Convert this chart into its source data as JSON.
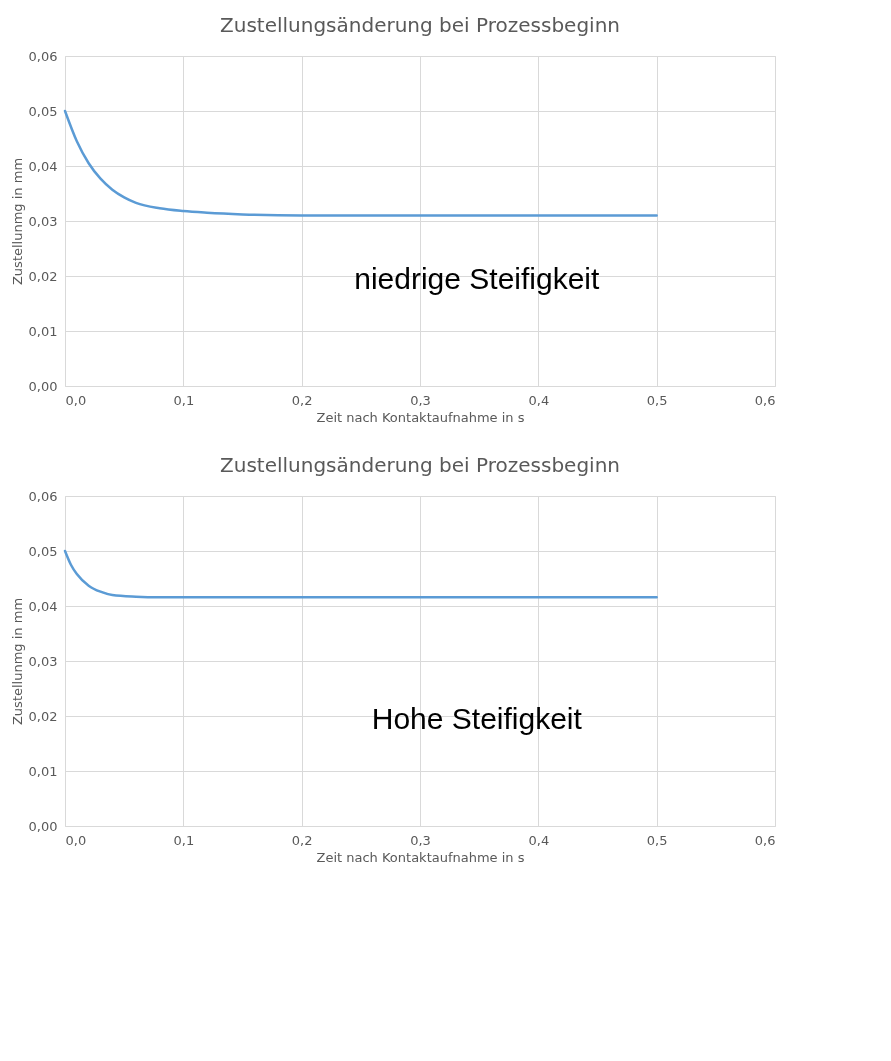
{
  "chart_data": [
    {
      "type": "line",
      "title": "Zustellungsänderung bei Prozessbeginn",
      "xlabel": "Zeit nach Kontaktaufnahme in s",
      "ylabel": "Zustellunmg in mm",
      "annotations": [
        "niedrige Steifigkeit"
      ],
      "series": [
        {
          "color": "#5b9bd5",
          "x": [
            0,
            0.01,
            0.02,
            0.03,
            0.04,
            0.05,
            0.06,
            0.08,
            0.1,
            0.12,
            0.15,
            0.2,
            0.3,
            0.4,
            0.5
          ],
          "values": [
            0.05,
            0.0445,
            0.0405,
            0.0377,
            0.0357,
            0.0343,
            0.0333,
            0.0323,
            0.0318,
            0.0315,
            0.0312,
            0.031,
            0.031,
            0.031,
            0.031
          ]
        }
      ],
      "xlim": [
        0,
        0.6
      ],
      "xticks": [
        {
          "value": 0,
          "label": "0,0"
        },
        {
          "value": 0.1,
          "label": "0,1"
        },
        {
          "value": 0.2,
          "label": "0,2"
        },
        {
          "value": 0.3,
          "label": "0,3"
        },
        {
          "value": 0.4,
          "label": "0,4"
        },
        {
          "value": 0.5,
          "label": "0,5"
        },
        {
          "value": 0.6,
          "label": "0,6"
        }
      ],
      "ylim": [
        0,
        0.06
      ],
      "yticks": [
        {
          "value": 0,
          "label": "0,00"
        },
        {
          "value": 0.01,
          "label": "0,01"
        },
        {
          "value": 0.02,
          "label": "0,02"
        },
        {
          "value": 0.03,
          "label": "0,03"
        },
        {
          "value": 0.04,
          "label": "0,04"
        },
        {
          "value": 0.05,
          "label": "0,05"
        },
        {
          "value": 0.06,
          "label": "0,06"
        }
      ],
      "grid": true,
      "marker": "none",
      "line_style": "solid"
    },
    {
      "type": "line",
      "title": "Zustellungsänderung bei Prozessbeginn",
      "xlabel": "Zeit nach Kontaktaufnahme in s",
      "ylabel": "Zustellunmg in mm",
      "annotations": [
        "Hohe Steifigkeit"
      ],
      "series": [
        {
          "color": "#5b9bd5",
          "x": [
            0,
            0.005,
            0.01,
            0.02,
            0.03,
            0.04,
            0.06,
            0.08,
            0.2,
            0.3,
            0.4,
            0.5
          ],
          "values": [
            0.05,
            0.0475,
            0.0458,
            0.0437,
            0.0426,
            0.042,
            0.0417,
            0.0416,
            0.0416,
            0.0416,
            0.0416,
            0.0416
          ]
        }
      ],
      "xlim": [
        0,
        0.6
      ],
      "xticks": [
        {
          "value": 0,
          "label": "0,0"
        },
        {
          "value": 0.1,
          "label": "0,1"
        },
        {
          "value": 0.2,
          "label": "0,2"
        },
        {
          "value": 0.3,
          "label": "0,3"
        },
        {
          "value": 0.4,
          "label": "0,4"
        },
        {
          "value": 0.5,
          "label": "0,5"
        },
        {
          "value": 0.6,
          "label": "0,6"
        }
      ],
      "ylim": [
        0,
        0.06
      ],
      "yticks": [
        {
          "value": 0,
          "label": "0,00"
        },
        {
          "value": 0.01,
          "label": "0,01"
        },
        {
          "value": 0.02,
          "label": "0,02"
        },
        {
          "value": 0.03,
          "label": "0,03"
        },
        {
          "value": 0.04,
          "label": "0,04"
        },
        {
          "value": 0.05,
          "label": "0,05"
        },
        {
          "value": 0.06,
          "label": "0,06"
        }
      ],
      "grid": true,
      "marker": "none",
      "line_style": "solid"
    }
  ]
}
